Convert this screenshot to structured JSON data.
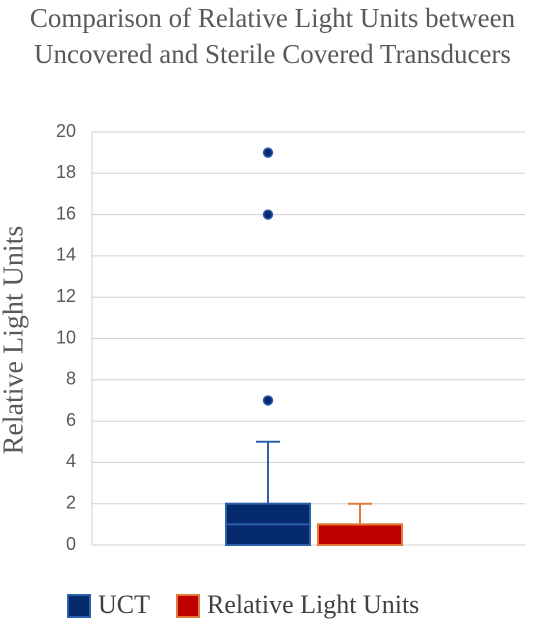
{
  "chart_data": {
    "type": "box",
    "title": "Comparison of Relative Light Units between Uncovered and Sterile Covered Transducers",
    "y_label": "Relative Light Units",
    "ylim": [
      0,
      20
    ],
    "yticks": [
      0,
      2,
      4,
      6,
      8,
      10,
      12,
      14,
      16,
      18,
      20
    ],
    "grid": true,
    "legend": "bottom",
    "series": [
      {
        "name": "UCT",
        "color": "#062a6e",
        "edge": "#2e5faa",
        "min": 0,
        "q1": 0,
        "median": 1,
        "q3": 2,
        "max": 5,
        "outliers": [
          7,
          16,
          19
        ]
      },
      {
        "name": "Relative Light Units",
        "color": "#c00000",
        "edge": "#e07b39",
        "min": 0,
        "q1": 0,
        "median": 1,
        "q3": 1,
        "max": 2,
        "outliers": []
      }
    ]
  }
}
